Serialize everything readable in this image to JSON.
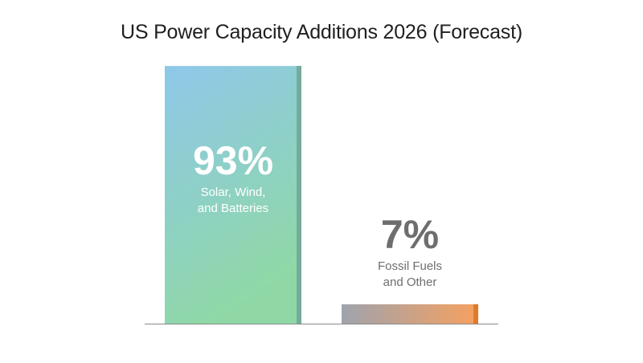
{
  "chart_data": {
    "type": "bar",
    "title": "US Power Capacity Additions 2026 (Forecast)",
    "categories": [
      "Solar, Wind, and Batteries",
      "Fossil Fuels and Other"
    ],
    "value_labels": [
      "93%",
      "7%"
    ],
    "category_label_lines": [
      [
        "Solar, Wind,",
        "and Batteries"
      ],
      [
        "Fossil Fuels",
        "and Other"
      ]
    ],
    "values": [
      93,
      7
    ],
    "ylim": [
      0,
      100
    ],
    "xlabel": "",
    "ylabel": "",
    "grid": false,
    "legend": "none",
    "colors": {
      "bar1_gradient": [
        "#8ec8ea",
        "#8fd8a6"
      ],
      "bar1_edge": "#74ab9b",
      "bar2_gradient": [
        "#9fa3ad",
        "#f6a160"
      ],
      "bar2_edge": "#e07a2c",
      "value_label_inside": "#ffffff",
      "value_label_outside": "#6e6e6e",
      "axis": "#8a8a8a"
    }
  }
}
